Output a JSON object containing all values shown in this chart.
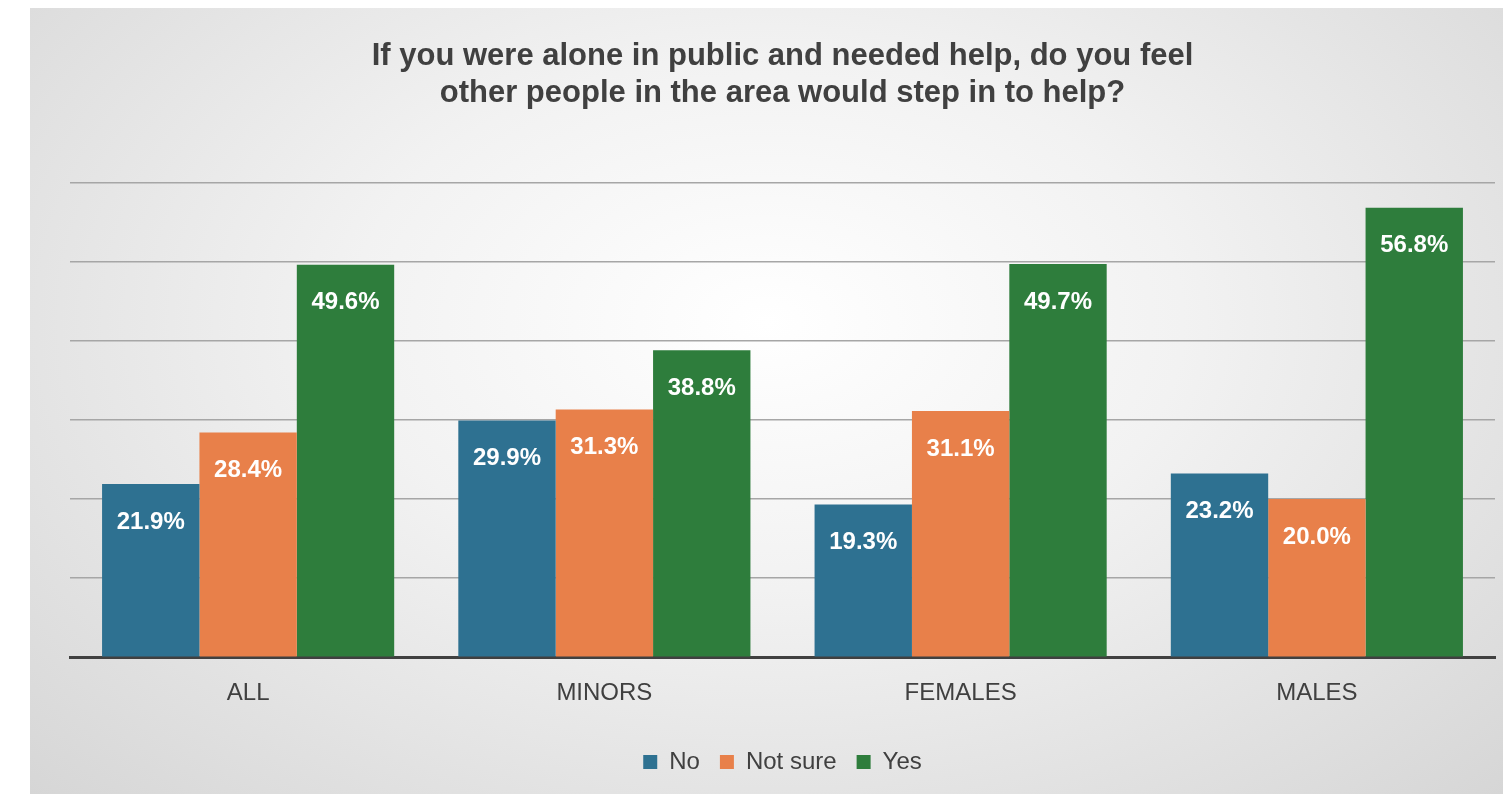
{
  "chart_data": {
    "type": "bar",
    "title": "If you were alone in public and needed help, do you feel other people in the area would step in to help?",
    "categories": [
      "ALL",
      "MINORS",
      "FEMALES",
      "MALES"
    ],
    "series": [
      {
        "name": "No",
        "color": "#2e7191",
        "values": [
          21.9,
          29.9,
          19.3,
          23.2
        ],
        "value_labels": [
          "21.9%",
          "29.9%",
          "19.3%",
          "23.2%"
        ]
      },
      {
        "name": "Not sure",
        "color": "#e8804a",
        "values": [
          28.4,
          31.3,
          31.1,
          20.0
        ],
        "value_labels": [
          "28.4%",
          "31.3%",
          "31.1%",
          "20.0%"
        ]
      },
      {
        "name": "Yes",
        "color": "#2e7d3c",
        "values": [
          49.6,
          38.8,
          49.7,
          56.8
        ],
        "value_labels": [
          "49.6%",
          "38.8%",
          "49.7%",
          "56.8%"
        ]
      }
    ],
    "ylim": [
      0,
      60
    ],
    "yticks": [
      {
        "value": 0,
        "label": null
      },
      {
        "value": 10,
        "label": null
      },
      {
        "value": 20,
        "label": null
      },
      {
        "value": 30,
        "label": null
      },
      {
        "value": 40,
        "label": null
      },
      {
        "value": 50,
        "label": null
      },
      {
        "value": 60,
        "label": null
      }
    ],
    "tick_labels": "x",
    "grid": "y",
    "legend": "bottom"
  }
}
